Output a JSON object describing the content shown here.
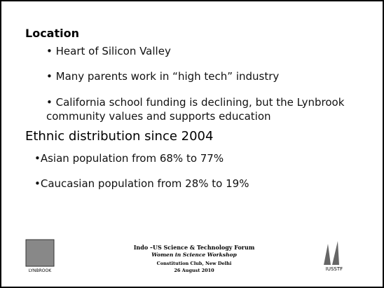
{
  "section1": {
    "heading": "Location",
    "bullets": [
      "Heart of Silicon Valley",
      "Many parents work in “high tech” industry",
      "California school funding is declining, but the Lynbrook community values and supports education"
    ]
  },
  "section2": {
    "heading": "Ethnic distribution since 2004",
    "bullets": [
      "Asian population from 68% to 77%",
      "Caucasian population from 28% to 19%"
    ]
  },
  "footer": {
    "logo_left": "LYNBROOK",
    "logo_right": "IUSSTF",
    "lines": [
      "Indo –US Science & Technology Forum",
      "Women in Science Workshop",
      "Constitution Club, New Delhi",
      "26 August 2010"
    ]
  }
}
